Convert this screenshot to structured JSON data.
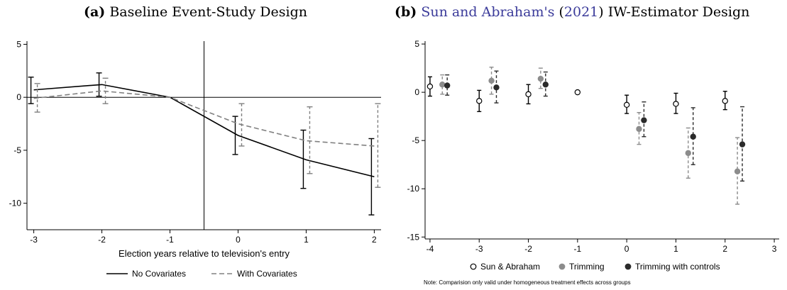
{
  "chart_data": [
    {
      "type": "line",
      "panel_label": "(a)",
      "title": "Baseline Event-Study Design",
      "xlabel": "Election years relative to television's entry",
      "ylabel": "",
      "xlim": [
        -3.1,
        2.1
      ],
      "ylim": [
        -12.5,
        5.3
      ],
      "xticks": [
        -3,
        -2,
        -1,
        0,
        1,
        2
      ],
      "yticks": [
        5,
        0,
        -5,
        -10
      ],
      "hline": 0,
      "vline": -0.5,
      "legend": "bottom",
      "series": [
        {
          "name": "No Covariates",
          "style": "solid",
          "color": "#000000",
          "x": [
            -3,
            -2,
            -1,
            0,
            1,
            2
          ],
          "y": [
            0.7,
            1.2,
            0,
            -3.6,
            -5.9,
            -7.5
          ],
          "ci_low": [
            -0.6,
            0.1,
            null,
            -5.4,
            -8.6,
            -11.1
          ],
          "ci_high": [
            1.9,
            2.3,
            null,
            -1.8,
            -3.1,
            -3.9
          ]
        },
        {
          "name": "With Covariates",
          "style": "dashed",
          "color": "#808080",
          "x": [
            -3,
            -2,
            -1,
            0,
            1,
            2
          ],
          "y": [
            -0.1,
            0.6,
            0,
            -2.5,
            -4.1,
            -4.6
          ],
          "ci_low": [
            -1.4,
            -0.6,
            null,
            -4.6,
            -7.2,
            -8.5
          ],
          "ci_high": [
            1.3,
            1.8,
            null,
            -0.6,
            -0.9,
            -0.6
          ]
        }
      ]
    },
    {
      "type": "scatter",
      "panel_label": "(b)",
      "title_link": "Sun and Abraham's",
      "title_year": "2021",
      "title_rest": "IW-Estimator Design",
      "xlabel": "",
      "ylabel": "",
      "xlim": [
        -4.1,
        3.1
      ],
      "ylim": [
        -15.2,
        5.3
      ],
      "xticks": [
        -4,
        -3,
        -2,
        -1,
        0,
        1,
        2,
        3
      ],
      "yticks": [
        5,
        0,
        -5,
        -10,
        -15
      ],
      "legend": "bottom",
      "note": "Note: Comparision only valid under homogeneous treatment effects across groups",
      "series": [
        {
          "name": "Sun & Abraham",
          "marker": "hollow-circle",
          "color": "#000000",
          "ci_style": "solid",
          "x": [
            -4,
            -3,
            -2,
            -1,
            0,
            1,
            2
          ],
          "y": [
            0.6,
            -0.9,
            -0.2,
            0,
            -1.3,
            -1.2,
            -0.9
          ],
          "ci_low": [
            -0.4,
            -2.0,
            -1.2,
            null,
            -2.2,
            -2.2,
            -1.8
          ],
          "ci_high": [
            1.6,
            0.2,
            0.8,
            null,
            -0.3,
            -0.1,
            0.1
          ]
        },
        {
          "name": "Trimming",
          "marker": "gray-circle",
          "color": "#8c8c8c",
          "ci_style": "dashed",
          "x": [
            -3.75,
            -2.75,
            -1.75,
            0.25,
            1.25,
            2.25
          ],
          "y": [
            0.8,
            1.2,
            1.4,
            -3.8,
            -6.3,
            -8.2
          ],
          "ci_low": [
            -0.2,
            -0.2,
            0.4,
            -5.4,
            -8.9,
            -11.6
          ],
          "ci_high": [
            1.8,
            2.6,
            2.5,
            -2.1,
            -3.7,
            -4.7
          ]
        },
        {
          "name": "Trimming with controls",
          "marker": "dark-circle",
          "color": "#2b2b2b",
          "ci_style": "dashed",
          "x": [
            -3.65,
            -2.65,
            -1.65,
            0.35,
            1.35,
            2.35
          ],
          "y": [
            0.7,
            0.5,
            0.8,
            -2.9,
            -4.6,
            -5.4
          ],
          "ci_low": [
            -0.3,
            -1.1,
            -0.4,
            -4.6,
            -7.5,
            -9.2
          ],
          "ci_high": [
            1.8,
            2.2,
            2.1,
            -1.0,
            -1.6,
            -1.5
          ]
        }
      ]
    }
  ]
}
